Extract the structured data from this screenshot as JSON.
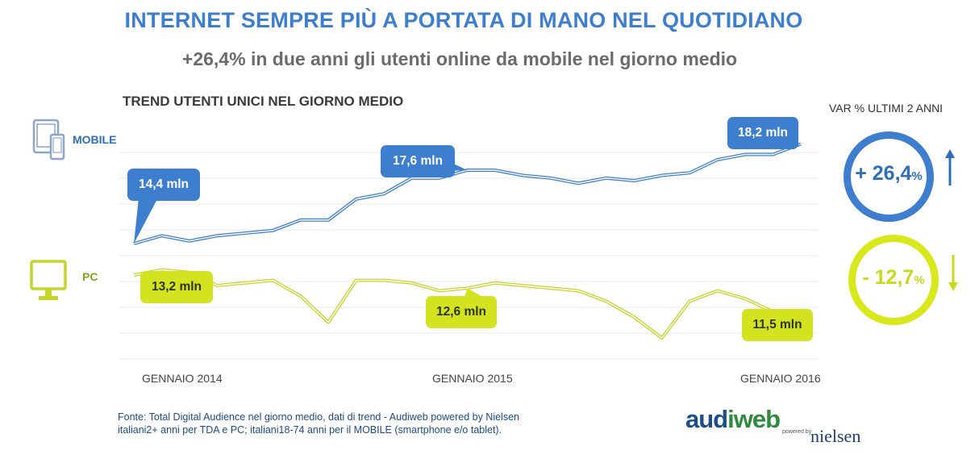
{
  "header": {
    "title": "INTERNET SEMPRE PIÙ A PORTATA DI MANO NEL QUOTIDIANO",
    "subtitle": "+26,4% in due anni gli utenti online da mobile nel giorno medio"
  },
  "chart_data": {
    "type": "line",
    "title": "TREND UTENTI UNICI NEL GIORNO MEDIO",
    "xlabel": "",
    "ylabel": "",
    "x_tick_labels": [
      "GENNAIO 2014",
      "GENNAIO 2015",
      "GENNAIO 2016"
    ],
    "grid": true,
    "ylim": [
      8,
      20
    ],
    "series": [
      {
        "name": "MOBILE",
        "color": "#3d7fce",
        "values": [
          14.4,
          14.7,
          14.5,
          14.7,
          14.8,
          14.9,
          15.3,
          15.3,
          16.1,
          16.3,
          16.9,
          16.9,
          17.2,
          17.2,
          17.0,
          16.9,
          16.7,
          16.9,
          16.8,
          17.0,
          17.1,
          17.6,
          17.8,
          17.8,
          18.2
        ]
      },
      {
        "name": "PC",
        "color": "#c4d62a",
        "values": [
          13.2,
          13.4,
          13.3,
          12.8,
          12.9,
          13.0,
          12.4,
          11.4,
          13.0,
          13.0,
          12.9,
          12.6,
          12.7,
          12.9,
          12.8,
          12.7,
          12.6,
          12.2,
          11.6,
          10.8,
          12.2,
          12.6,
          12.3,
          11.8,
          11.5
        ]
      }
    ],
    "callouts": [
      {
        "series": "MOBILE",
        "text": "14,4 mln"
      },
      {
        "series": "MOBILE",
        "text": "17,6 mln"
      },
      {
        "series": "MOBILE",
        "text": "18,2 mln"
      },
      {
        "series": "PC",
        "text": "13,2 mln"
      },
      {
        "series": "PC",
        "text": "12,6 mln"
      },
      {
        "series": "PC",
        "text": "11,5 mln"
      }
    ]
  },
  "legend": {
    "mobile_label": "MOBILE",
    "pc_label": "PC",
    "mobile_icon": "smartphone-tablet-icon",
    "pc_icon": "monitor-icon"
  },
  "variation": {
    "title": "VAR % ULTIMI 2 ANNI",
    "mobile_main": "+ 26,4",
    "mobile_pct": "%",
    "pc_main": "- 12,7",
    "pc_pct": "%",
    "mobile_arrow_icon": "arrow-up-icon",
    "pc_arrow_icon": "arrow-down-icon"
  },
  "footnote": {
    "line1": "Fonte: Total Digital Audience nel giorno medio, dati di trend - Audiweb powered by Nielsen",
    "line2": "italiani2+ anni per TDA e PC; italiani18-74 anni per il MOBILE (smartphone e/o tablet)."
  },
  "logo": {
    "audi": "aud",
    "web": "iweb",
    "powered": "powered by",
    "nielsen": "nielsen"
  }
}
